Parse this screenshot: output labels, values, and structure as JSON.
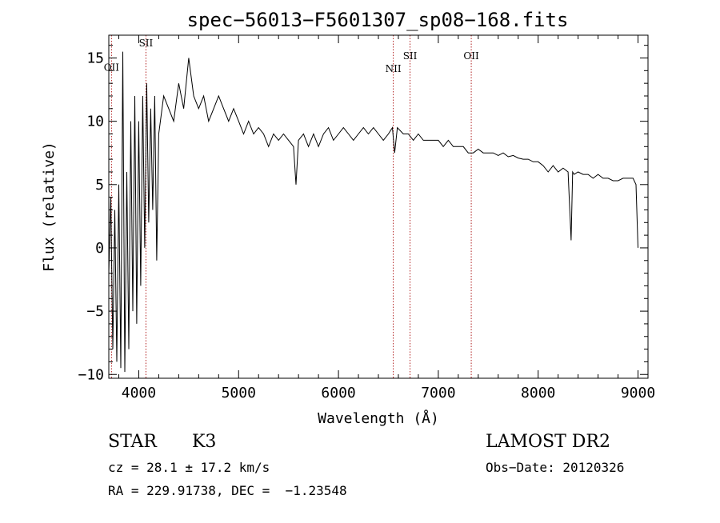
{
  "chart_data": {
    "type": "line",
    "title": "spec−56013−F5601307_sp08−168.fits",
    "xlabel": "Wavelength (Å)",
    "ylabel": "Flux (relative)",
    "xlim": [
      3700,
      9100
    ],
    "ylim": [
      -10.3,
      16.8
    ],
    "xticks": [
      4000,
      5000,
      6000,
      7000,
      8000,
      9000
    ],
    "yticks": [
      -10,
      -5,
      0,
      5,
      10,
      15
    ],
    "ytick_labels": [
      "−10",
      "−5",
      "0",
      "5",
      "10",
      "15"
    ],
    "grid": false,
    "series": [
      {
        "x": [
          3700,
          3720,
          3740,
          3760,
          3780,
          3800,
          3820,
          3840,
          3860,
          3880,
          3900,
          3920,
          3940,
          3960,
          3980,
          4000,
          4020,
          4040,
          4060,
          4080,
          4100,
          4120,
          4140,
          4160,
          4180,
          4200,
          4250,
          4300,
          4350,
          4400,
          4450,
          4500,
          4550,
          4600,
          4650,
          4700,
          4750,
          4800,
          4850,
          4900,
          4950,
          5000,
          5050,
          5100,
          5150,
          5200,
          5250,
          5300,
          5350,
          5400,
          5450,
          5500,
          5550,
          5575,
          5600,
          5650,
          5700,
          5750,
          5800,
          5850,
          5900,
          5950,
          6000,
          6050,
          6100,
          6150,
          6200,
          6250,
          6300,
          6350,
          6400,
          6450,
          6500,
          6540,
          6563,
          6590,
          6650,
          6700,
          6750,
          6800,
          6850,
          6900,
          6950,
          7000,
          7050,
          7100,
          7150,
          7200,
          7250,
          7300,
          7350,
          7400,
          7450,
          7500,
          7550,
          7600,
          7650,
          7700,
          7750,
          7800,
          7850,
          7900,
          7950,
          8000,
          8050,
          8100,
          8150,
          8200,
          8250,
          8300,
          8330,
          8345,
          8360,
          8400,
          8450,
          8500,
          8550,
          8600,
          8650,
          8700,
          8750,
          8800,
          8850,
          8900,
          8950,
          8980,
          9000
        ],
        "y": [
          -2,
          4,
          -8,
          3,
          -9,
          5,
          -9.5,
          15.5,
          -9.8,
          6,
          -8,
          10,
          -5,
          12,
          -6,
          10,
          -3,
          12,
          0,
          13,
          2,
          11,
          3,
          12,
          -1,
          9,
          12,
          11,
          10,
          13,
          11,
          15,
          12,
          11,
          12,
          10,
          11,
          12,
          11,
          10,
          11,
          10,
          9,
          10,
          9,
          9.5,
          9,
          8,
          9,
          8.5,
          9,
          8.5,
          8,
          5,
          8.5,
          9,
          8,
          9,
          8,
          9,
          9.5,
          8.5,
          9,
          9.5,
          9,
          8.5,
          9,
          9.5,
          9,
          9.5,
          9,
          8.5,
          9,
          9.5,
          7.5,
          9.5,
          9,
          9,
          8.5,
          9,
          8.5,
          8.5,
          8.5,
          8.5,
          8,
          8.5,
          8,
          8,
          8,
          7.5,
          7.5,
          7.8,
          7.5,
          7.5,
          7.5,
          7.3,
          7.5,
          7.2,
          7.3,
          7.1,
          7,
          7,
          6.8,
          6.8,
          6.5,
          6,
          6.5,
          6,
          6.3,
          6,
          0.6,
          6,
          5.8,
          6,
          5.8,
          5.8,
          5.5,
          5.8,
          5.5,
          5.5,
          5.3,
          5.3,
          5.5,
          5.5,
          5.5,
          5,
          0
        ]
      }
    ],
    "lines": [
      {
        "x": 3727,
        "label": "OII",
        "label_y": 14.0
      },
      {
        "x": 4072,
        "label": "SII",
        "label_y": 15.9
      },
      {
        "x": 6549,
        "label": "NII",
        "label_y": 13.9
      },
      {
        "x": 6717,
        "label": "SII",
        "label_y": 14.9
      },
      {
        "x": 7330,
        "label": "OII",
        "label_y": 14.9
      }
    ]
  },
  "info": {
    "class": "STAR",
    "subclass": "K3",
    "survey": "LAMOST DR2",
    "cz": "cz = 28.1 ± 17.2 km/s",
    "obsdate": "Obs−Date: 20120326",
    "radec": "RA = 229.91738, DEC =  −1.23548"
  },
  "colors": {
    "spectrum": "#000000",
    "line_markers": "#b22222",
    "axes": "#000000"
  }
}
